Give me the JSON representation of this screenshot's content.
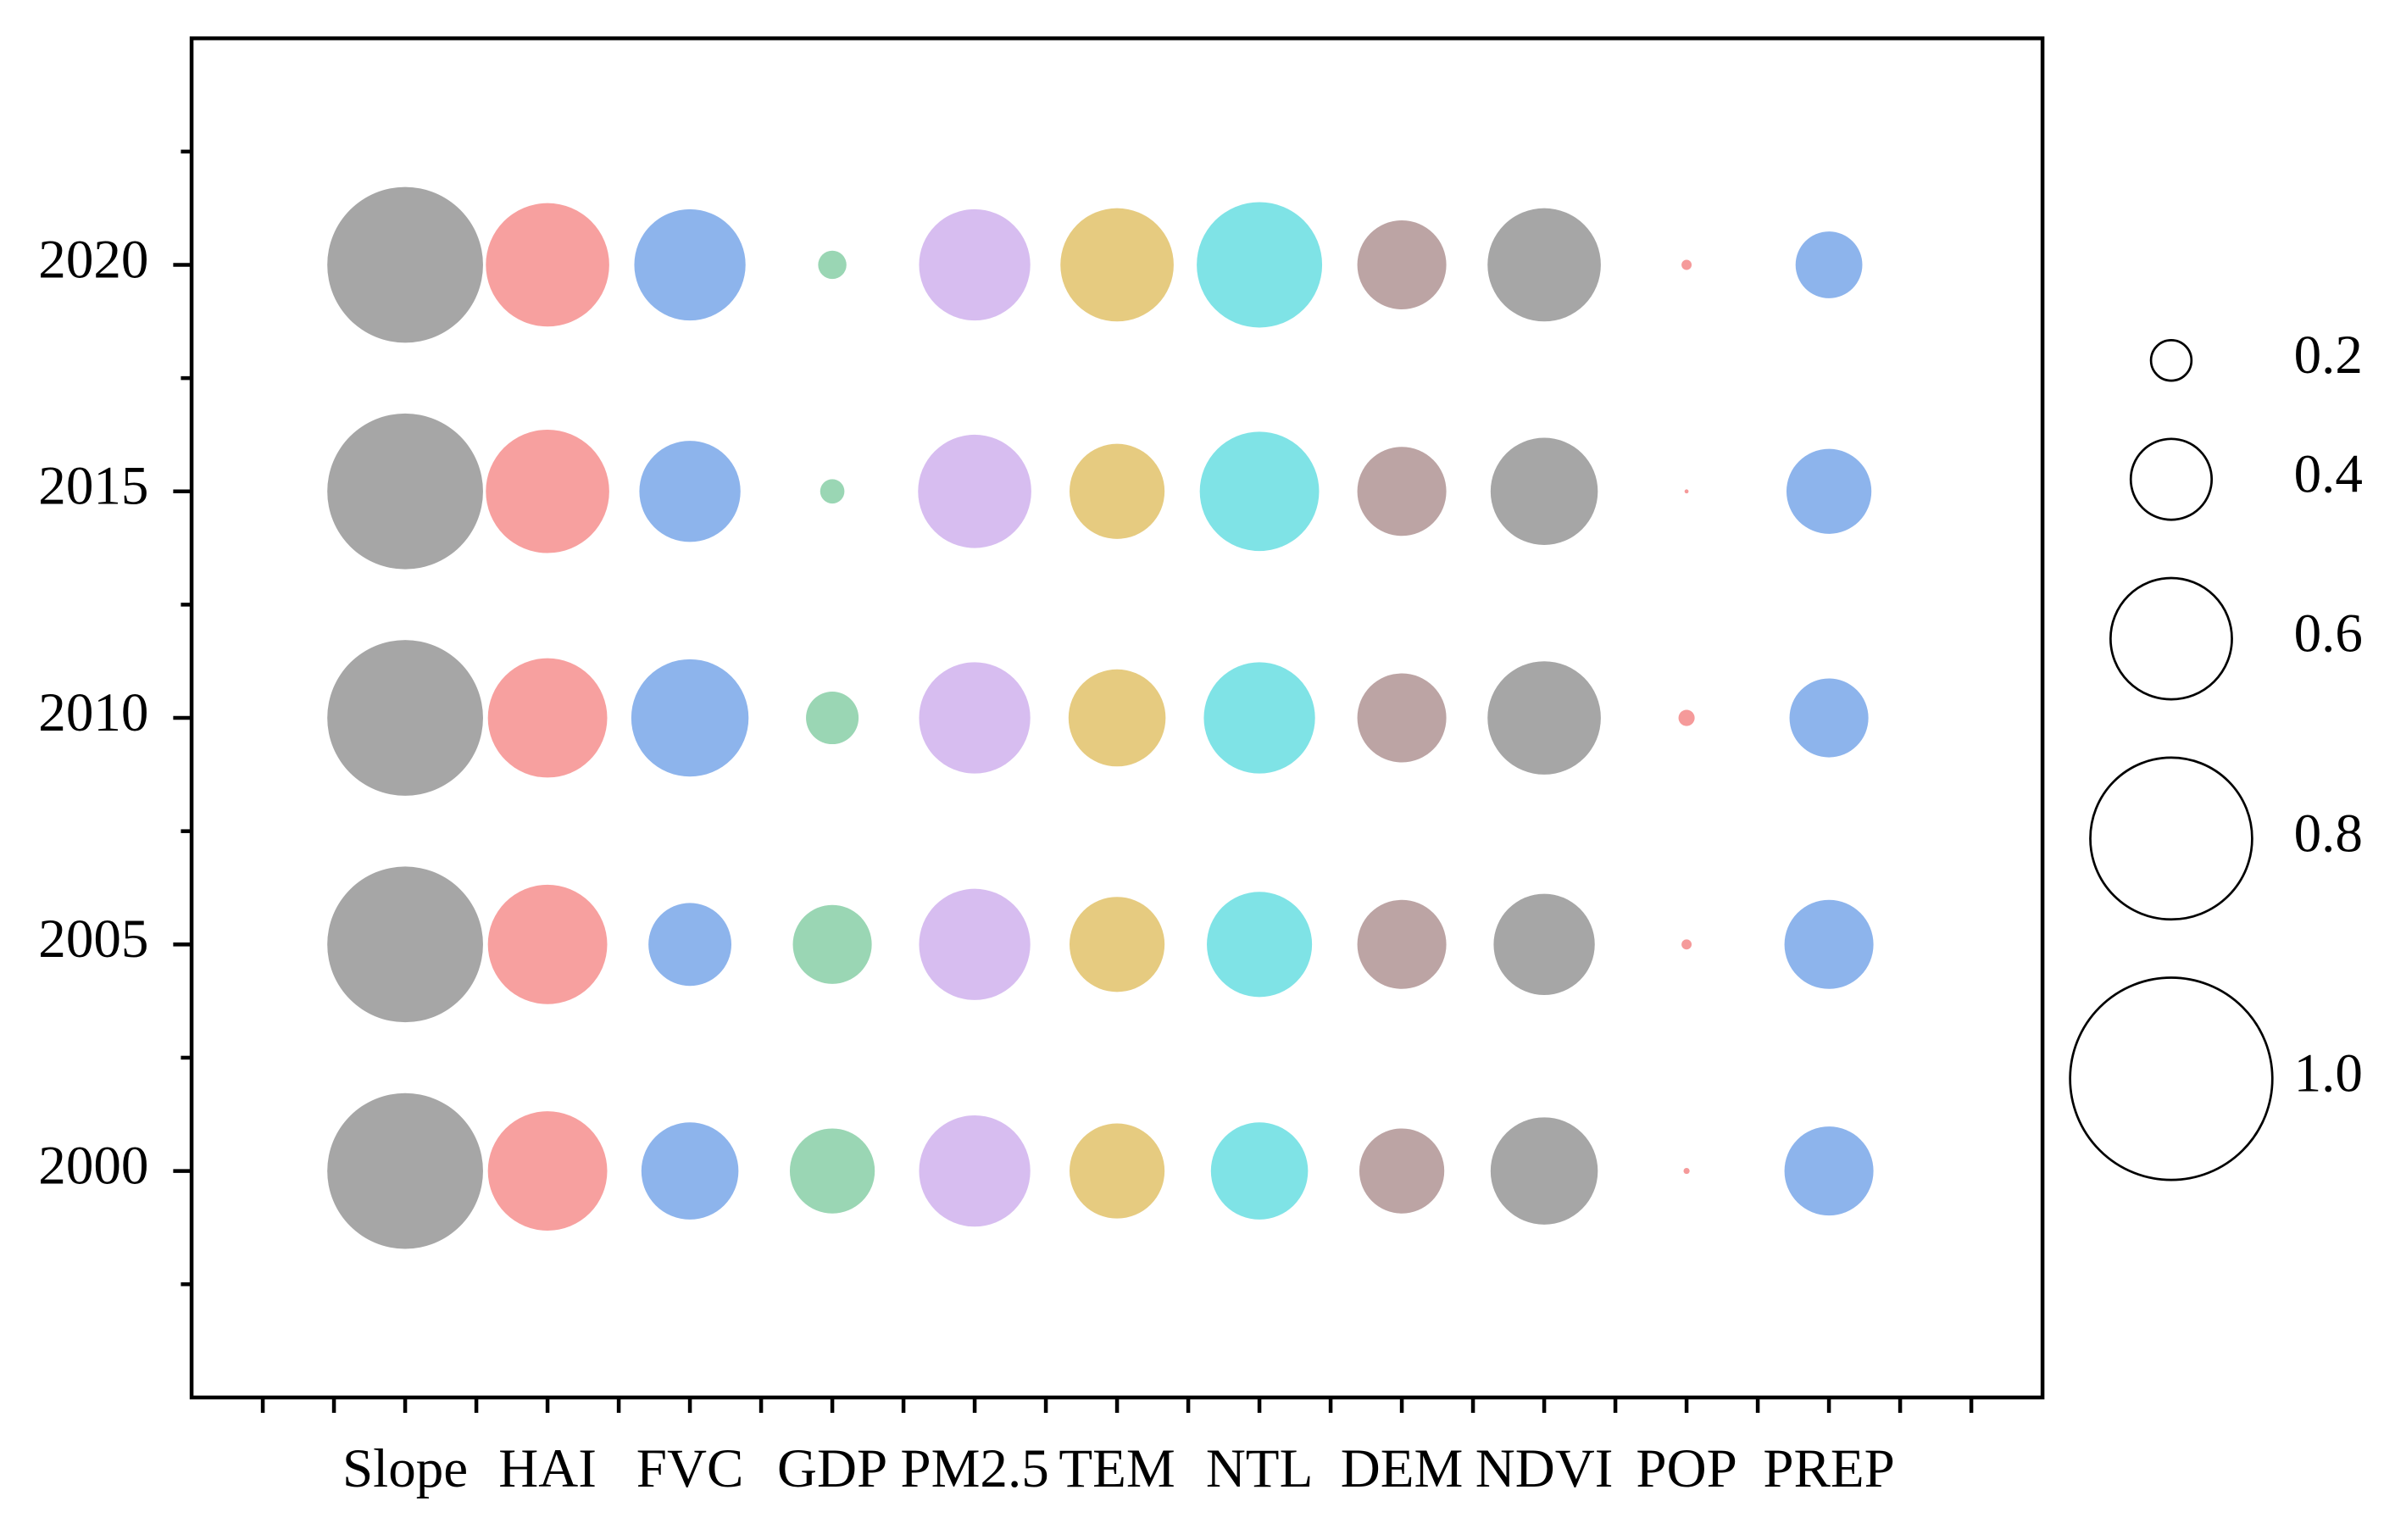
{
  "chart_data": {
    "type": "bubble",
    "categories": [
      "Slope",
      "HAI",
      "FVC",
      "GDP",
      "PM2.5",
      "TEM",
      "NTL",
      "DEM",
      "NDVI",
      "POP",
      "PREP"
    ],
    "colors": [
      "#a6a6a6",
      "#f7a09f",
      "#8db4ec",
      "#9ad6b4",
      "#d7bdf0",
      "#e6cb80",
      "#7fe3e6",
      "#bca4a4",
      "#a6a6a6",
      "#f59a9a",
      "#8db4ec"
    ],
    "rows": [
      {
        "y": 2020,
        "values": [
          0.77,
          0.61,
          0.55,
          0.14,
          0.55,
          0.56,
          0.62,
          0.44,
          0.56,
          0.05,
          0.33
        ]
      },
      {
        "y": 2015,
        "values": [
          0.77,
          0.61,
          0.5,
          0.12,
          0.56,
          0.47,
          0.59,
          0.44,
          0.53,
          0.02,
          0.42
        ]
      },
      {
        "y": 2010,
        "values": [
          0.77,
          0.59,
          0.58,
          0.26,
          0.55,
          0.48,
          0.55,
          0.44,
          0.56,
          0.08,
          0.39
        ]
      },
      {
        "y": 2005,
        "values": [
          0.77,
          0.59,
          0.41,
          0.39,
          0.55,
          0.47,
          0.52,
          0.44,
          0.5,
          0.05,
          0.44
        ]
      },
      {
        "y": 2000,
        "values": [
          0.77,
          0.59,
          0.48,
          0.42,
          0.55,
          0.47,
          0.48,
          0.42,
          0.53,
          0.03,
          0.44
        ]
      }
    ],
    "ylim": [
      1995,
      2025
    ],
    "yticks": [
      2000,
      2005,
      2010,
      2015,
      2020
    ],
    "size_legend": [
      0.2,
      0.4,
      0.6,
      0.8,
      {
        "value": 1.0,
        "label": "1.0"
      }
    ]
  }
}
